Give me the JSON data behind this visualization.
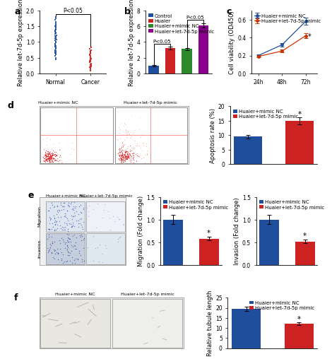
{
  "panel_a": {
    "normal_y": [
      1.8,
      1.75,
      1.7,
      1.65,
      1.6,
      1.55,
      1.52,
      1.5,
      1.48,
      1.45,
      1.42,
      1.4,
      1.38,
      1.35,
      1.32,
      1.3,
      1.28,
      1.25,
      1.22,
      1.2,
      1.18,
      1.15,
      1.12,
      1.1,
      1.08,
      1.05,
      1.02,
      1.0,
      0.98,
      0.95,
      0.92,
      0.9,
      0.88,
      0.85,
      0.82,
      0.8,
      0.78,
      0.75,
      0.72,
      0.7,
      0.68,
      0.65,
      0.62,
      0.6,
      0.55,
      0.5,
      0.45
    ],
    "cancer_y": [
      0.82,
      0.78,
      0.75,
      0.72,
      0.7,
      0.68,
      0.65,
      0.62,
      0.6,
      0.58,
      0.55,
      0.52,
      0.5,
      0.48,
      0.45,
      0.42,
      0.4,
      0.38,
      0.35,
      0.32,
      0.3,
      0.28,
      0.25,
      0.22,
      0.2,
      0.18,
      0.15,
      0.12,
      0.1
    ],
    "ylabel": "Relative let-7d-5p expression",
    "xticks": [
      "Normal",
      "Cancer"
    ],
    "ylim": [
      0,
      2.0
    ],
    "yticks": [
      0.0,
      0.5,
      1.0,
      1.5,
      2.0
    ],
    "pval_text": "P<0.05",
    "normal_color": "#1f4e9c",
    "cancer_color": "#cc2222"
  },
  "panel_b": {
    "categories": [
      "Control",
      "Huaier",
      "Huaier+mimic NC",
      "Huaier+let-7d-5p mimic"
    ],
    "values": [
      1.0,
      3.2,
      3.1,
      6.1
    ],
    "errors": [
      0.08,
      0.18,
      0.15,
      0.28
    ],
    "colors": [
      "#1f4e9c",
      "#cc2222",
      "#2a8a2a",
      "#8b008b"
    ],
    "ylabel": "Relative let-7d-5p expression",
    "ylim": [
      0,
      8
    ],
    "yticks": [
      0,
      2,
      4,
      6,
      8
    ],
    "pval1_text": "P<0.05",
    "pval2_text": "P<0.05"
  },
  "panel_c": {
    "timepoints": [
      "24h",
      "48h",
      "72h"
    ],
    "nc_values": [
      0.2,
      0.32,
      0.58
    ],
    "mimic_values": [
      0.19,
      0.25,
      0.42
    ],
    "nc_errors": [
      0.015,
      0.02,
      0.04
    ],
    "mimic_errors": [
      0.012,
      0.018,
      0.03
    ],
    "nc_color": "#1f4e9c",
    "mimic_color": "#cc3300",
    "ylabel": "Cell viability (OD450)",
    "ylim": [
      0.0,
      0.7
    ],
    "yticks": [
      0.0,
      0.2,
      0.4,
      0.6
    ],
    "nc_label": "Huaier+mimic NC",
    "mimic_label": "Huaier+let-7d-5p mimic"
  },
  "panel_d_bar": {
    "values": [
      9.5,
      15.0
    ],
    "errors": [
      0.6,
      1.2
    ],
    "colors": [
      "#1f4e9c",
      "#cc2222"
    ],
    "ylabel": "Apoptosis rate (%)",
    "ylim": [
      0,
      20
    ],
    "yticks": [
      0,
      5,
      10,
      15,
      20
    ],
    "star_text": "*"
  },
  "panel_e_migration": {
    "values": [
      1.0,
      0.58
    ],
    "errors": [
      0.1,
      0.04
    ],
    "colors": [
      "#1f4e9c",
      "#cc2222"
    ],
    "ylabel": "Migration (Fold change)",
    "ylim": [
      0,
      1.5
    ],
    "yticks": [
      0.0,
      0.5,
      1.0,
      1.5
    ],
    "star_text": "*"
  },
  "panel_e_invasion": {
    "values": [
      1.0,
      0.52
    ],
    "errors": [
      0.1,
      0.04
    ],
    "colors": [
      "#1f4e9c",
      "#cc2222"
    ],
    "ylabel": "Invasion (Fold change)",
    "ylim": [
      0,
      1.5
    ],
    "yticks": [
      0.0,
      0.5,
      1.0,
      1.5
    ],
    "star_text": "*"
  },
  "panel_f_bar": {
    "values": [
      19.5,
      12.0
    ],
    "errors": [
      1.2,
      0.7
    ],
    "colors": [
      "#1f4e9c",
      "#cc2222"
    ],
    "ylabel": "Relative tubule length",
    "ylim": [
      0,
      25
    ],
    "yticks": [
      0,
      5,
      10,
      15,
      20,
      25
    ],
    "star_text": "*"
  },
  "legend_nc": "Huaier+mimic NC",
  "legend_mimic": "Huaier+let-7d-5p mimic",
  "bg_color": "#ffffff",
  "panel_labels": [
    "a",
    "b",
    "c",
    "d",
    "e",
    "f"
  ],
  "tick_fontsize": 5.5,
  "axis_label_fontsize": 6.0,
  "legend_fontsize": 5.0
}
